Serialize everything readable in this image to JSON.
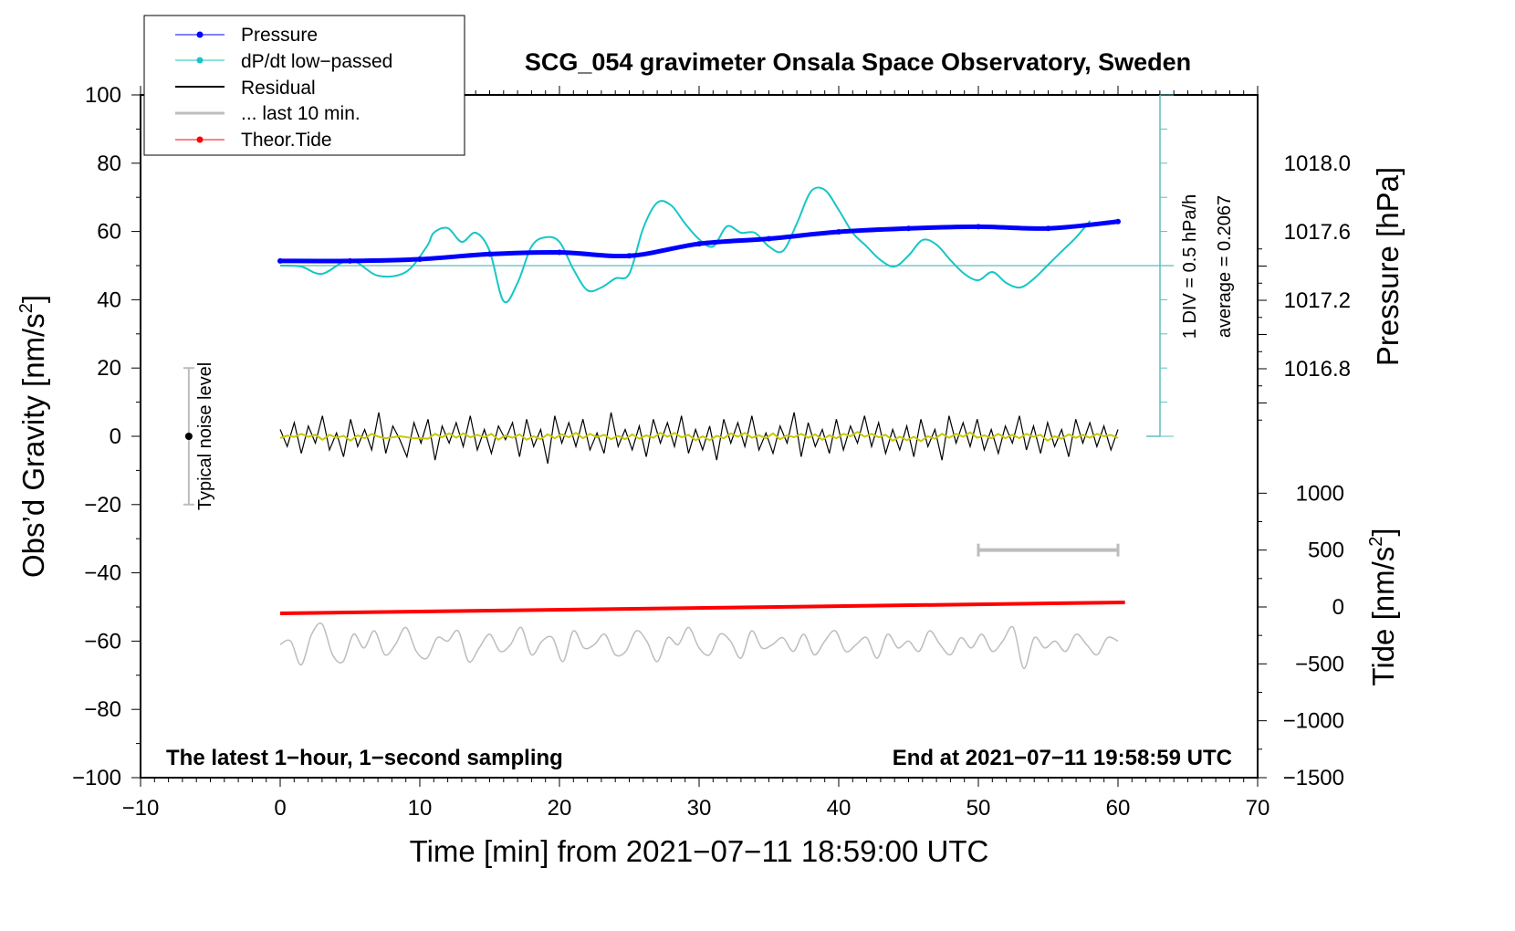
{
  "chart_data": {
    "type": "line",
    "title": "SCG_054 gravimeter Onsala Space Observatory, Sweden",
    "xlabel": "Time [min] from 2021−07−11 18:59:00 UTC",
    "ylabel": "Obs’d Gravity [nm/s²]",
    "ylabel_main": "Obs’d Gravity [nm/s",
    "ylabel_sup": "2",
    "ylabel_end": "]",
    "y2label": "Pressure [hPa]",
    "y3label_main": "Tide [nm/s",
    "y3label_sup": "2",
    "y3label_end": "]",
    "xlim": [
      -10,
      70
    ],
    "ylim": [
      -100,
      100
    ],
    "pressure_lim": [
      1016.4,
      1018.4
    ],
    "tide_lim": [
      -1500,
      1500
    ],
    "xticks": [
      "−10",
      "0",
      "10",
      "20",
      "30",
      "40",
      "50",
      "60",
      "70"
    ],
    "yticks": [
      "100",
      "80",
      "60",
      "40",
      "20",
      "0",
      "−20",
      "−40",
      "−60",
      "−80",
      "−100"
    ],
    "pressure_ticks": [
      "1018.0",
      "1017.6",
      "1017.2",
      "1016.8"
    ],
    "tide_ticks": [
      "1000",
      "500",
      "0",
      "−500",
      "−1000",
      "−1500"
    ],
    "annotations": {
      "bottom_left": "The latest 1−hour, 1−second sampling",
      "bottom_right": "End at 2021−07−11 19:58:59 UTC",
      "div_label": "1 DIV = 0.5 hPa/h",
      "average_label": "average = 0.2067",
      "noise_label": "Typical noise level"
    },
    "dpdt_average": 0.2067,
    "dpdt_div": 0.5,
    "legend": {
      "position": "top-left",
      "entries": [
        "Pressure",
        "dP/dt low−passed",
        "Residual",
        "... last 10 min.",
        "Theor.Tide"
      ]
    },
    "colors": {
      "pressure": "#0000ff",
      "dpdt": "#17c6c6",
      "residual": "#000000",
      "smooth": "#c8c800",
      "last10": "#bdbdbd",
      "tide": "#ff0000",
      "dpdt_axis": "#5cbdbd"
    },
    "noise_level": {
      "x": -7,
      "center": 0,
      "half_range": 20
    },
    "last10_marker": {
      "x_start": 50,
      "x_end": 60,
      "tide_value": 500
    },
    "pressure": {
      "x": [
        0,
        5,
        10,
        15,
        20,
        25,
        30,
        35,
        40,
        45,
        50,
        55,
        60
      ],
      "y": [
        1017.43,
        1017.43,
        1017.44,
        1017.47,
        1017.48,
        1017.46,
        1017.53,
        1017.56,
        1017.6,
        1017.62,
        1017.63,
        1017.62,
        1017.66
      ]
    },
    "dpdt": {
      "x": [
        0,
        1.5,
        3,
        5,
        7,
        9,
        10.5,
        11,
        12,
        13,
        14,
        15,
        16,
        17,
        18,
        19,
        20,
        21,
        22,
        23,
        24,
        25,
        26,
        27,
        28,
        29,
        30,
        31,
        32,
        33,
        34,
        35,
        36,
        37,
        38,
        39,
        40,
        41,
        42,
        43,
        44,
        45,
        46,
        47,
        48,
        49,
        50,
        51,
        52,
        53,
        54,
        55,
        56,
        57,
        58
      ],
      "y": [
        0.207,
        0.193,
        0.086,
        0.287,
        0.06,
        0.113,
        0.487,
        0.688,
        0.755,
        0.554,
        0.688,
        0.421,
        -0.315,
        -0.047,
        0.487,
        0.621,
        0.554,
        0.153,
        -0.154,
        -0.114,
        0.019,
        0.086,
        0.755,
        1.129,
        1.089,
        0.822,
        0.594,
        0.487,
        0.782,
        0.688,
        0.688,
        0.487,
        0.421,
        0.822,
        1.29,
        1.316,
        1.022,
        0.688,
        0.487,
        0.287,
        0.193,
        0.354,
        0.581,
        0.514,
        0.287,
        0.086,
        -0.007,
        0.113,
        -0.047,
        -0.114,
        0.019,
        0.22,
        0.421,
        0.621,
        0.862
      ]
    },
    "residual": {
      "x_start": 0,
      "x_end": 60,
      "y": [
        2,
        -3,
        4,
        -5,
        3,
        -2,
        6,
        -4,
        1,
        -6,
        5,
        -3,
        2,
        -4,
        7,
        -5,
        3,
        -1,
        -6,
        4,
        -2,
        5,
        -7,
        3,
        -2,
        4,
        -3,
        6,
        -4,
        2,
        -5,
        3,
        -1,
        4,
        -6,
        5,
        -3,
        2,
        -8,
        6,
        -2,
        4,
        -3,
        5,
        -4,
        1,
        -5,
        7,
        -3,
        2,
        -4,
        3,
        -6,
        5,
        -2,
        4,
        -3,
        6,
        -5,
        2,
        -4,
        3,
        -7,
        5,
        -2,
        4,
        -3,
        6,
        -4,
        1,
        -5,
        3,
        -2,
        7,
        -6,
        4,
        -3,
        2,
        -5,
        5,
        -4,
        3,
        -2,
        6,
        -3,
        4,
        -5,
        2,
        -4,
        3,
        -6,
        5,
        -3,
        2,
        -7,
        6,
        -2,
        4,
        -3,
        5,
        -4,
        2,
        -5,
        3,
        -2,
        6,
        -4,
        3,
        -5,
        4,
        -3,
        2,
        -6,
        5,
        -2,
        4,
        -3,
        3,
        -4,
        2
      ]
    },
    "last10": {
      "x_start": 0,
      "x_end": 60,
      "y": [
        -61,
        -60,
        -67,
        -58,
        -55,
        -64,
        -66,
        -58,
        -62,
        -57,
        -64,
        -61,
        -56,
        -63,
        -65,
        -59,
        -60,
        -57,
        -66,
        -62,
        -58,
        -63,
        -61,
        -56,
        -64,
        -60,
        -59,
        -66,
        -57,
        -62,
        -61,
        -58,
        -64,
        -63,
        -57,
        -60,
        -66,
        -59,
        -61,
        -56,
        -62,
        -64,
        -58,
        -60,
        -65,
        -57,
        -62,
        -61,
        -59,
        -63,
        -58,
        -64,
        -60,
        -57,
        -63,
        -61,
        -59,
        -65,
        -58,
        -62,
        -60,
        -63,
        -57,
        -61,
        -64,
        -59,
        -62,
        -58,
        -63,
        -60,
        -56,
        -68,
        -59,
        -62,
        -60,
        -63,
        -58,
        -61,
        -64,
        -59,
        -60
      ]
    },
    "tide": {
      "x": [
        0,
        60.5
      ],
      "y": [
        -56,
        40
      ]
    }
  }
}
